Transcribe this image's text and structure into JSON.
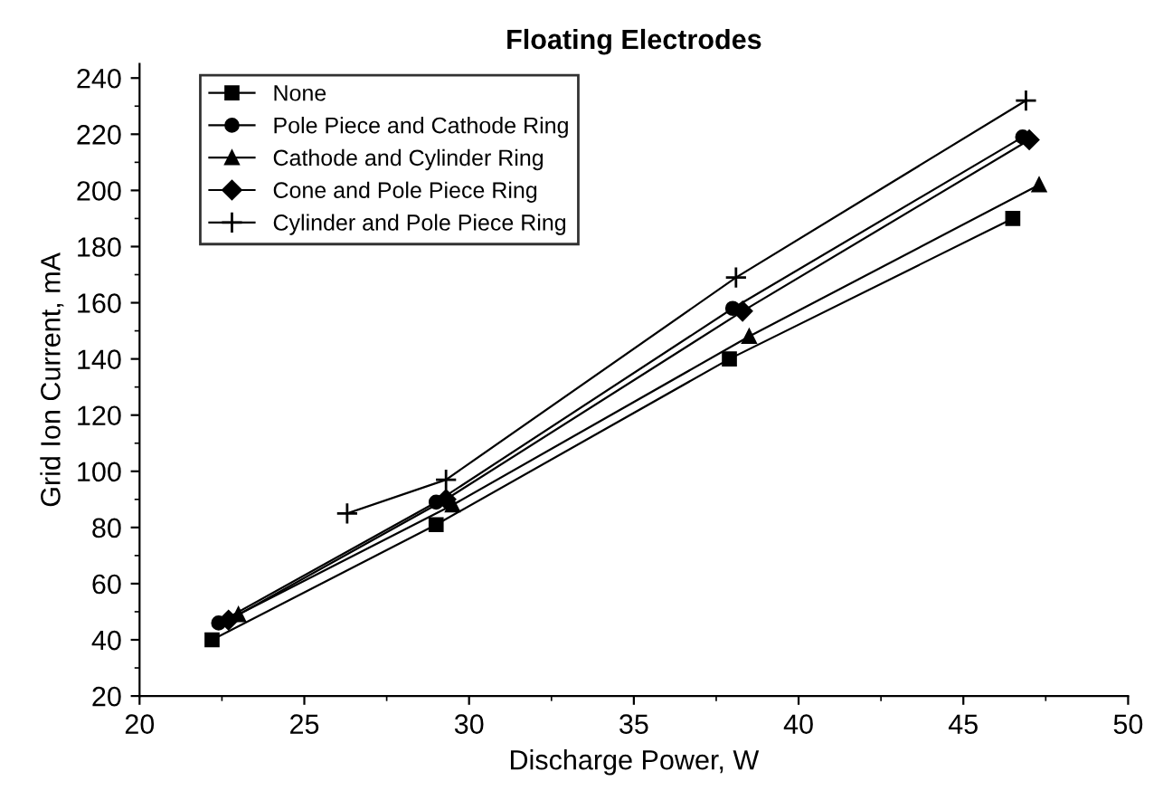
{
  "chart_data": {
    "type": "line",
    "title": "Floating Electrodes",
    "xlabel": "Discharge Power, W",
    "ylabel": "Grid Ion Current, mA",
    "xlim": [
      20,
      50
    ],
    "xticks": [
      20,
      25,
      30,
      35,
      40,
      45,
      50
    ],
    "ylim": [
      20,
      245
    ],
    "yticks": [
      20,
      40,
      60,
      80,
      100,
      120,
      140,
      160,
      180,
      200,
      220,
      240
    ],
    "grid": false,
    "legend": "top left",
    "line_style": "solid",
    "series": [
      {
        "name": "None",
        "color": "#000000",
        "marker": "square",
        "x": [
          22.2,
          29.0,
          37.9,
          46.5
        ],
        "values": [
          40,
          81,
          140,
          190
        ]
      },
      {
        "name": "Pole Piece and Cathode Ring",
        "color": "#000000",
        "marker": "circle",
        "x": [
          22.4,
          29.0,
          38.0,
          46.8
        ],
        "values": [
          46,
          89,
          158,
          219
        ]
      },
      {
        "name": "Cathode and Cylinder Ring",
        "color": "#000000",
        "marker": "triangle",
        "x": [
          23.0,
          29.5,
          38.5,
          47.3
        ],
        "values": [
          49,
          88,
          148,
          202
        ]
      },
      {
        "name": "Cone and Pole Piece Ring",
        "color": "#000000",
        "marker": "diamond",
        "x": [
          22.7,
          29.3,
          38.3,
          47.0
        ],
        "values": [
          47,
          90,
          157,
          218
        ]
      },
      {
        "name": "Cylinder and Pole Piece Ring",
        "color": "#000000",
        "marker": "cross",
        "x": [
          26.3,
          29.3,
          38.1,
          46.9
        ],
        "values": [
          85,
          97,
          169,
          232
        ]
      }
    ]
  }
}
